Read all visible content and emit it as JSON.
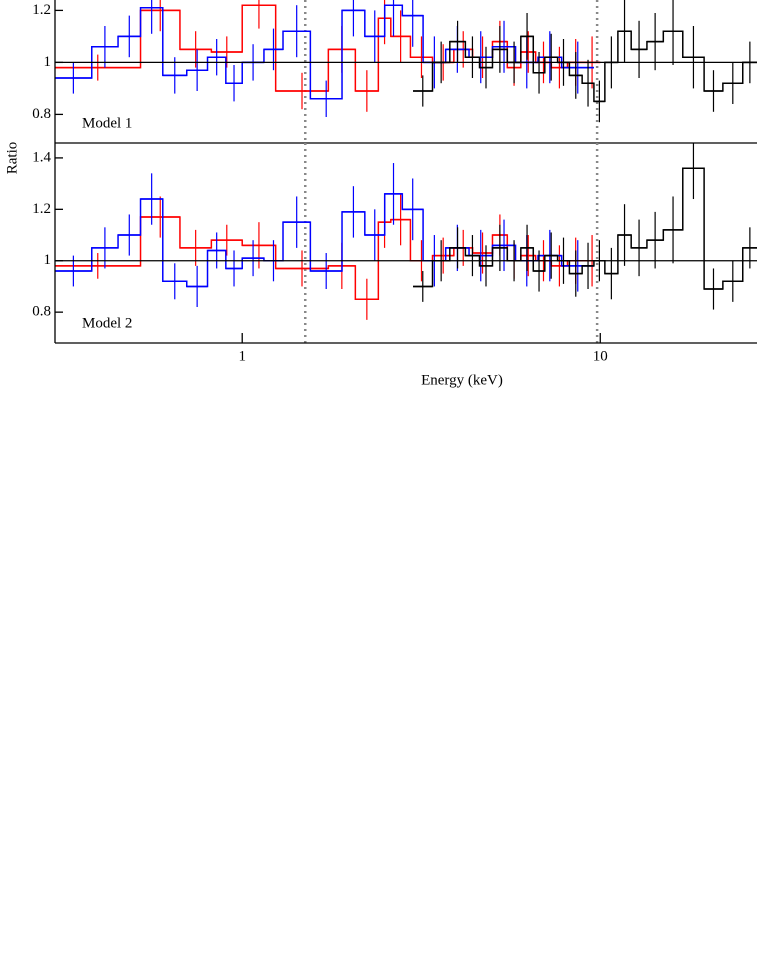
{
  "chart_data": [
    {
      "type": "step",
      "text": "Model 1",
      "ylabel": "Ratio",
      "xlim": [
        0.3,
        27.4
      ],
      "log_x": true,
      "ylim": [
        0.69,
        1.24
      ],
      "yticks": [
        0.8,
        1,
        1.2
      ],
      "hline": 1,
      "vlines": [
        1.5,
        9.8
      ],
      "series": [
        {
          "color": "#ff0000",
          "bins": [
            0.3,
            0.52,
            0.67,
            0.82,
            1.0,
            1.24,
            1.74,
            2.07,
            2.4,
            2.6,
            2.95,
            3.4,
            3.9,
            4.4,
            5.0,
            5.5,
            6.0,
            6.6,
            7.3,
            8.1,
            9.0,
            10.0
          ],
          "values": [
            0.98,
            1.2,
            1.05,
            1.04,
            1.22,
            0.89,
            1.05,
            0.89,
            1.17,
            1.1,
            1.02,
            1.0,
            1.05,
            1.02,
            1.08,
            0.98,
            1.04,
            1.0,
            0.98,
            1.0,
            1.0
          ],
          "errors": [
            0.05,
            0.08,
            0.07,
            0.06,
            0.09,
            0.07,
            0.09,
            0.08,
            0.1,
            0.1,
            0.08,
            0.07,
            0.07,
            0.08,
            0.08,
            0.07,
            0.08,
            0.08,
            0.08,
            0.09,
            0.1
          ]
        },
        {
          "color": "#0000ff",
          "bins": [
            0.3,
            0.38,
            0.45,
            0.52,
            0.6,
            0.7,
            0.8,
            0.9,
            1.0,
            1.15,
            1.3,
            1.55,
            1.9,
            2.2,
            2.5,
            2.8,
            3.2,
            3.7,
            4.3,
            5.0,
            5.8,
            6.7,
            7.8,
            9.6
          ],
          "values": [
            0.94,
            1.06,
            1.1,
            1.21,
            0.95,
            0.97,
            1.02,
            0.92,
            1.0,
            1.05,
            1.12,
            0.86,
            1.2,
            1.1,
            1.22,
            1.18,
            1.0,
            1.05,
            1.02,
            1.06,
            1.0,
            1.02,
            0.98
          ],
          "errors": [
            0.06,
            0.08,
            0.08,
            0.1,
            0.07,
            0.08,
            0.07,
            0.07,
            0.07,
            0.08,
            0.1,
            0.07,
            0.1,
            0.1,
            0.12,
            0.12,
            0.1,
            0.09,
            0.1,
            0.1,
            0.1,
            0.1,
            0.1
          ]
        },
        {
          "color": "#000000",
          "bins": [
            3.0,
            3.4,
            3.8,
            4.2,
            4.6,
            5.0,
            5.5,
            6.0,
            6.5,
            7.0,
            7.6,
            8.2,
            8.9,
            9.6,
            10.3,
            11.2,
            12.2,
            13.5,
            15.0,
            17.0,
            19.5,
            22.0,
            25.0,
            27.4
          ],
          "values": [
            0.89,
            1.0,
            1.08,
            1.02,
            0.98,
            1.05,
            1.0,
            1.1,
            0.96,
            1.02,
            1.0,
            0.95,
            0.92,
            0.85,
            1.0,
            1.12,
            1.05,
            1.08,
            1.12,
            1.02,
            0.89,
            0.92,
            1.0
          ],
          "errors": [
            0.06,
            0.08,
            0.08,
            0.08,
            0.08,
            0.09,
            0.08,
            0.09,
            0.08,
            0.09,
            0.09,
            0.09,
            0.09,
            0.08,
            0.1,
            0.12,
            0.11,
            0.11,
            0.13,
            0.12,
            0.08,
            0.08,
            0.08
          ]
        }
      ]
    },
    {
      "type": "step",
      "text": "Model 2",
      "xlabel": "Energy (keV)",
      "xlim": [
        0.3,
        27.4
      ],
      "log_x": true,
      "xticks": [
        1,
        10
      ],
      "ylim": [
        0.68,
        1.458
      ],
      "yticks": [
        0.8,
        1,
        1.2,
        1.4
      ],
      "hline": 1,
      "vlines": [
        1.5,
        9.8
      ],
      "series": [
        {
          "color": "#ff0000",
          "bins": [
            0.3,
            0.52,
            0.67,
            0.82,
            1.0,
            1.24,
            1.74,
            2.07,
            2.4,
            2.6,
            2.95,
            3.4,
            3.9,
            4.4,
            5.0,
            5.5,
            6.0,
            6.6,
            7.3,
            8.1,
            9.0,
            10.0
          ],
          "values": [
            0.98,
            1.17,
            1.05,
            1.08,
            1.06,
            0.97,
            0.98,
            0.85,
            1.15,
            1.16,
            1.0,
            1.02,
            1.05,
            1.03,
            1.1,
            1.0,
            1.02,
            1.0,
            0.98,
            1.0,
            1.0
          ],
          "errors": [
            0.05,
            0.08,
            0.07,
            0.06,
            0.09,
            0.07,
            0.09,
            0.08,
            0.1,
            0.1,
            0.08,
            0.07,
            0.07,
            0.08,
            0.08,
            0.07,
            0.08,
            0.08,
            0.08,
            0.09,
            0.1
          ]
        },
        {
          "color": "#0000ff",
          "bins": [
            0.3,
            0.38,
            0.45,
            0.52,
            0.6,
            0.7,
            0.8,
            0.9,
            1.0,
            1.15,
            1.3,
            1.55,
            1.9,
            2.2,
            2.5,
            2.8,
            3.2,
            3.7,
            4.3,
            5.0,
            5.8,
            6.7,
            7.8,
            9.6
          ],
          "values": [
            0.96,
            1.05,
            1.1,
            1.24,
            0.92,
            0.9,
            1.04,
            0.97,
            1.01,
            1.0,
            1.15,
            0.96,
            1.19,
            1.1,
            1.26,
            1.2,
            1.0,
            1.05,
            1.02,
            1.06,
            1.0,
            1.02,
            0.98
          ],
          "errors": [
            0.06,
            0.08,
            0.08,
            0.1,
            0.07,
            0.08,
            0.07,
            0.07,
            0.07,
            0.08,
            0.1,
            0.07,
            0.1,
            0.1,
            0.12,
            0.12,
            0.1,
            0.09,
            0.1,
            0.1,
            0.1,
            0.1,
            0.1
          ]
        },
        {
          "color": "#000000",
          "bins": [
            3.0,
            3.4,
            3.8,
            4.2,
            4.6,
            5.0,
            5.5,
            6.0,
            6.5,
            7.0,
            7.6,
            8.2,
            8.9,
            9.6,
            10.3,
            11.2,
            12.2,
            13.5,
            15.0,
            17.0,
            19.5,
            22.0,
            25.0,
            27.4
          ],
          "values": [
            0.9,
            1.0,
            1.05,
            1.02,
            0.98,
            1.05,
            1.0,
            1.05,
            0.96,
            1.02,
            1.0,
            0.95,
            0.98,
            1.0,
            0.95,
            1.1,
            1.05,
            1.08,
            1.12,
            1.36,
            0.89,
            0.92,
            1.05
          ],
          "errors": [
            0.06,
            0.08,
            0.08,
            0.08,
            0.08,
            0.09,
            0.08,
            0.09,
            0.08,
            0.09,
            0.09,
            0.09,
            0.09,
            0.08,
            0.1,
            0.12,
            0.11,
            0.11,
            0.13,
            0.12,
            0.08,
            0.08,
            0.08
          ]
        }
      ]
    }
  ]
}
